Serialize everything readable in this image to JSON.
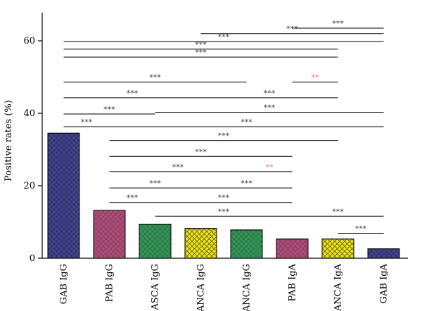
{
  "chart_data": {
    "type": "bar",
    "title": "",
    "xlabel": "",
    "ylabel": "Positive rates (%)",
    "ylim": [
      0,
      65
    ],
    "yticks": [
      0,
      20,
      40,
      60
    ],
    "grid": false,
    "categories": [
      "GAB IgG",
      "PAB IgG",
      "ASCA IgG",
      "ANCA IgG",
      "ANCA IgG",
      "PAB IgA",
      "ANCA IgA",
      "GAB IgA"
    ],
    "values": [
      34.5,
      13.2,
      9.4,
      8.2,
      7.8,
      5.3,
      5.3,
      2.6
    ],
    "colors": [
      "#2e3192",
      "#c2427a",
      "#1fa14f",
      "#f2e600",
      "#1fa14f",
      "#c2427a",
      "#f2e600",
      "#2e3192"
    ],
    "pattern": "crosshatch",
    "significance": [
      {
        "from": 5,
        "to": 7,
        "y": 63.5,
        "label": "***",
        "color": "#333333"
      },
      {
        "from": 3,
        "to": 7,
        "y": 62.0,
        "label": "***",
        "color": "#333333"
      },
      {
        "from": 0,
        "to": 7,
        "y": 59.8,
        "label": "***",
        "color": "#333333"
      },
      {
        "from": 0,
        "to": 6,
        "y": 57.7,
        "label": "***",
        "color": "#333333"
      },
      {
        "from": 0,
        "to": 6,
        "y": 55.5,
        "label": "***",
        "color": "#333333"
      },
      {
        "from": 0,
        "to": 4,
        "y": 48.6,
        "label": "***",
        "color": "#333333"
      },
      {
        "from": 5,
        "to": 6,
        "y": 48.6,
        "label": "**",
        "color": "#e07070"
      },
      {
        "from": 0,
        "to": 3,
        "y": 44.3,
        "label": "***",
        "color": "#333333"
      },
      {
        "from": 3,
        "to": 6,
        "y": 44.3,
        "label": "***",
        "color": "#333333"
      },
      {
        "from": 0,
        "to": 2,
        "y": 39.8,
        "label": "***",
        "color": "#333333"
      },
      {
        "from": 2,
        "to": 7,
        "y": 40.3,
        "label": "***",
        "color": "#333333"
      },
      {
        "from": 0,
        "to": 1,
        "y": 36.3,
        "label": "***",
        "color": "#333333"
      },
      {
        "from": 1,
        "to": 7,
        "y": 36.3,
        "label": "***",
        "color": "#333333"
      },
      {
        "from": 1,
        "to": 6,
        "y": 32.5,
        "label": "***",
        "color": "#333333"
      },
      {
        "from": 1,
        "to": 5,
        "y": 28.1,
        "label": "***",
        "color": "#333333"
      },
      {
        "from": 1,
        "to": 4,
        "y": 23.9,
        "label": "***",
        "color": "#333333"
      },
      {
        "from": 4,
        "to": 5,
        "y": 23.9,
        "label": "**",
        "color": "#e07070"
      },
      {
        "from": 1,
        "to": 3,
        "y": 19.4,
        "label": "***",
        "color": "#333333"
      },
      {
        "from": 3,
        "to": 5,
        "y": 19.4,
        "label": "***",
        "color": "#333333"
      },
      {
        "from": 1,
        "to": 2,
        "y": 15.4,
        "label": "***",
        "color": "#333333"
      },
      {
        "from": 2,
        "to": 5,
        "y": 15.4,
        "label": "***",
        "color": "#333333"
      },
      {
        "from": 2,
        "to": 5,
        "y": 11.6,
        "label": "***",
        "color": "#333333"
      },
      {
        "from": 5,
        "to": 7,
        "y": 11.6,
        "label": "***",
        "color": "#333333"
      },
      {
        "from": 6,
        "to": 7,
        "y": 6.9,
        "label": "***",
        "color": "#333333"
      }
    ]
  }
}
